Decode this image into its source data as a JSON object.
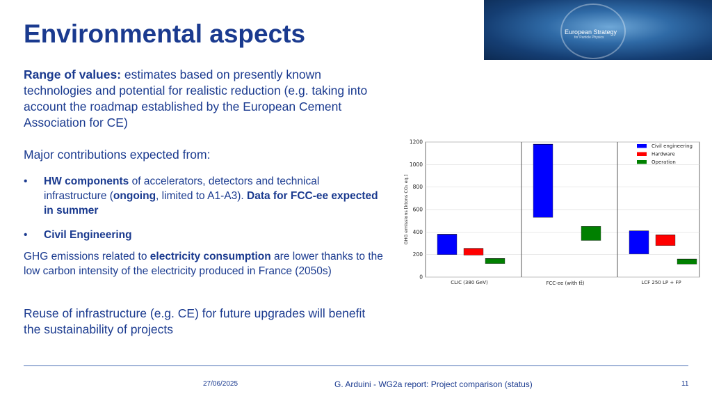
{
  "slide": {
    "title": "Environmental aspects",
    "banner": {
      "line1": "European Strategy",
      "line2": "for Particle Physics"
    },
    "range": {
      "lead": "Range of values:",
      "text": " estimates based on presently known technologies and potential for realistic reduction (e.g. taking into account the roadmap established by the European Cement Association for CE)"
    },
    "major": "Major contributions expected from:",
    "bullet1": {
      "b1": "HW components",
      "t1": " of accelerators, detectors and technical infrastructure (",
      "b2": "ongoing",
      "t2": ", limited to A1-A3). ",
      "b3": "Data for FCC-ee expected in summer"
    },
    "bullet2": "Civil Engineering",
    "ghg": {
      "t1": "GHG emissions related to ",
      "b1": "electricity consumption",
      "t2": " are lower thanks to the low carbon intensity of the electricity produced in France (2050s)"
    },
    "reuse": "Reuse of infrastructure (e.g. CE) for future upgrades will benefit the sustainability of projects",
    "footer": {
      "date": "27/06/2025",
      "center": "G. Arduini - WG2a report: Project comparison (status)",
      "page": "11"
    }
  },
  "chart_data": {
    "type": "bar",
    "ylabel": "GHG emissions [ktons CO₂ eq.]",
    "ylim": [
      0,
      1200
    ],
    "yticks": [
      0,
      200,
      400,
      600,
      800,
      1000,
      1200
    ],
    "grid": true,
    "legend_position": "top-right",
    "categories": [
      "CLIC (380 GeV)",
      "FCC-ee (with tt̄)",
      "LCF 250 LP + FP"
    ],
    "series": [
      {
        "name": "Civil engineering",
        "color": "#0000ff",
        "ranges": [
          [
            200,
            380
          ],
          [
            530,
            1180
          ],
          [
            205,
            410
          ]
        ]
      },
      {
        "name": "Hardware",
        "color": "#ff0000",
        "ranges": [
          [
            195,
            255
          ],
          null,
          [
            280,
            375
          ]
        ]
      },
      {
        "name": "Operation",
        "color": "#008000",
        "ranges": [
          [
            120,
            165
          ],
          [
            325,
            450
          ],
          [
            115,
            160
          ]
        ]
      }
    ]
  }
}
